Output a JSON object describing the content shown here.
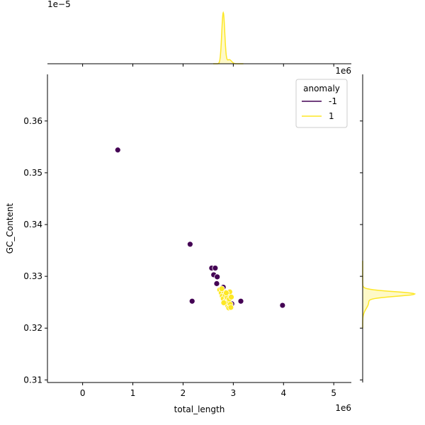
{
  "chart_data": {
    "type": "scatter",
    "xlabel": "total_length",
    "ylabel": "GC_Content",
    "x_offset_text": "1e6",
    "y_offset_text": "",
    "top_marginal_offset_text": "1e−5",
    "right_marginal_offset_text": "1e6",
    "xlim": [
      -700000,
      5350000
    ],
    "ylim": [
      0.3095,
      0.369
    ],
    "x_ticks": [
      0,
      1000000,
      2000000,
      3000000,
      4000000,
      5000000
    ],
    "x_tick_labels": [
      "0",
      "1",
      "2",
      "3",
      "4",
      "5"
    ],
    "y_ticks": [
      0.31,
      0.32,
      0.33,
      0.34,
      0.35,
      0.36
    ],
    "y_tick_labels": [
      "0.31",
      "0.32",
      "0.33",
      "0.34",
      "0.35",
      "0.36"
    ],
    "grid": false,
    "legend": {
      "title": "anomaly",
      "placement": "top-right",
      "entries": [
        {
          "label": "-1",
          "color": "#440154"
        },
        {
          "label": "1",
          "color": "#fde725"
        }
      ]
    },
    "series": [
      {
        "name": "-1",
        "color": "#440154",
        "points": [
          {
            "x": 700000,
            "y": 0.3544
          },
          {
            "x": 2140000,
            "y": 0.3362
          },
          {
            "x": 2180000,
            "y": 0.3252
          },
          {
            "x": 2570000,
            "y": 0.3316
          },
          {
            "x": 2640000,
            "y": 0.3316
          },
          {
            "x": 2610000,
            "y": 0.3303
          },
          {
            "x": 2680000,
            "y": 0.3299
          },
          {
            "x": 2670000,
            "y": 0.3286
          },
          {
            "x": 2800000,
            "y": 0.3279
          },
          {
            "x": 2900000,
            "y": 0.3255
          },
          {
            "x": 2970000,
            "y": 0.3247
          },
          {
            "x": 3150000,
            "y": 0.3252
          },
          {
            "x": 3980000,
            "y": 0.3244
          }
        ]
      },
      {
        "name": "1",
        "color": "#fde725",
        "points": [
          {
            "x": 2730000,
            "y": 0.3274
          },
          {
            "x": 2760000,
            "y": 0.3268
          },
          {
            "x": 2780000,
            "y": 0.3262
          },
          {
            "x": 2800000,
            "y": 0.3257
          },
          {
            "x": 2820000,
            "y": 0.327
          },
          {
            "x": 2840000,
            "y": 0.3264
          },
          {
            "x": 2850000,
            "y": 0.3253
          },
          {
            "x": 2870000,
            "y": 0.3247
          },
          {
            "x": 2880000,
            "y": 0.3259
          },
          {
            "x": 2890000,
            "y": 0.3243
          },
          {
            "x": 2900000,
            "y": 0.325
          },
          {
            "x": 2910000,
            "y": 0.3239
          },
          {
            "x": 2920000,
            "y": 0.3256
          },
          {
            "x": 2930000,
            "y": 0.327
          },
          {
            "x": 2940000,
            "y": 0.3246
          },
          {
            "x": 2950000,
            "y": 0.324
          },
          {
            "x": 2960000,
            "y": 0.326
          },
          {
            "x": 2770000,
            "y": 0.3276
          },
          {
            "x": 2810000,
            "y": 0.3249
          },
          {
            "x": 2860000,
            "y": 0.3268
          }
        ]
      }
    ],
    "top_marginal_kde": {
      "series": "1",
      "color": "#fde725",
      "peak_x": 2800000,
      "sigma_x": 30000,
      "shoulder_x": 2920000,
      "shoulder_sigma_x": 45000,
      "shoulder_ratio": 0.08
    },
    "right_marginal_kde": {
      "series": "1",
      "color": "#fde725",
      "peak_y": 0.3266,
      "sigma_y": 0.00045,
      "shoulder_y": 0.325,
      "shoulder_sigma_y": 0.0012,
      "shoulder_ratio": 0.12
    }
  }
}
